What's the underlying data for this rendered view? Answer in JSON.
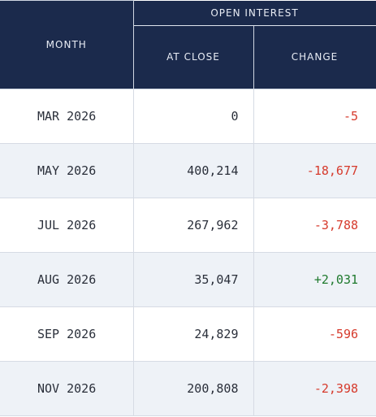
{
  "table": {
    "group_header": "OPEN INTEREST",
    "headers": {
      "month": "MONTH",
      "at_close": "AT CLOSE",
      "change": "CHANGE"
    },
    "rows": [
      {
        "month": "MAR 2026",
        "at_close": "0",
        "change": "-5",
        "direction": "negative"
      },
      {
        "month": "MAY 2026",
        "at_close": "400,214",
        "change": "-18,677",
        "direction": "negative"
      },
      {
        "month": "JUL 2026",
        "at_close": "267,962",
        "change": "-3,788",
        "direction": "negative"
      },
      {
        "month": "AUG 2026",
        "at_close": "35,047",
        "change": "+2,031",
        "direction": "positive"
      },
      {
        "month": "SEP 2026",
        "at_close": "24,829",
        "change": "-596",
        "direction": "negative"
      },
      {
        "month": "NOV 2026",
        "at_close": "200,808",
        "change": "-2,398",
        "direction": "negative"
      }
    ]
  },
  "colors": {
    "header_bg": "#1b2a4c",
    "header_text": "#e8ecf4",
    "negative": "#d63a2c",
    "positive": "#1f7a2e",
    "alt_row": "#eef2f7"
  }
}
